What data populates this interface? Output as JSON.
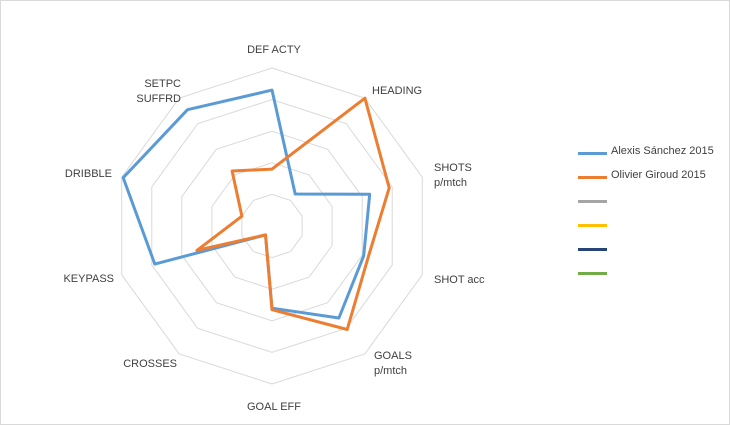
{
  "chart_data": {
    "type": "radar",
    "title": "",
    "axes": [
      [
        "DEF ACTY"
      ],
      [
        "HEADING"
      ],
      [
        "SHOTS",
        "p/mtch"
      ],
      [
        "SHOT acc"
      ],
      [
        "GOALS",
        "p/mtch"
      ],
      [
        "GOAL EFF"
      ],
      [
        "CROSSES"
      ],
      [
        "KEYPASS"
      ],
      [
        "DRIBBLE"
      ],
      [
        "SETPC",
        "SUFFRD"
      ]
    ],
    "range": [
      0,
      1
    ],
    "rings": 5,
    "series": [
      {
        "name": "Alexis Sánchez 2015",
        "color": "#5b9bd5",
        "values": [
          0.86,
          0.25,
          0.65,
          0.61,
          0.72,
          0.52,
          0.07,
          0.78,
          0.99,
          0.91
        ]
      },
      {
        "name": "Olivier Giroud 2015",
        "color": "#ed7d31",
        "values": [
          0.36,
          1.0,
          0.78,
          0.64,
          0.81,
          0.53,
          0.07,
          0.5,
          0.2,
          0.43
        ]
      }
    ],
    "empty_legend_entries": [
      {
        "color": "#a5a5a5"
      },
      {
        "color": "#ffc000"
      },
      {
        "color": "#264478"
      },
      {
        "color": "#70ad47"
      }
    ],
    "legend_position": "right"
  }
}
